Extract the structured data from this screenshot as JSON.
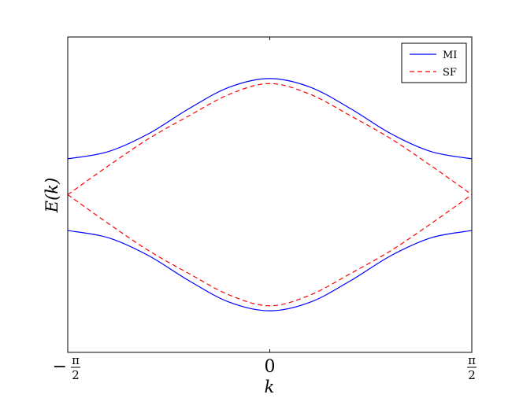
{
  "chart_data": {
    "type": "line",
    "title": "",
    "xlabel": "k",
    "ylabel": "E(k)",
    "xlim": [
      -1.5708,
      1.5708
    ],
    "ylim": [
      -2.2,
      2.2
    ],
    "xticks": [
      {
        "value": -1.5708,
        "sign": "−",
        "num": "π",
        "den": "2"
      },
      {
        "value": 0,
        "sign": "",
        "num": "0",
        "den": ""
      },
      {
        "value": 1.5708,
        "sign": "",
        "num": "π",
        "den": "2"
      }
    ],
    "yticks": [],
    "grid": false,
    "legend": {
      "position": "top-right",
      "entries": [
        "MI",
        "SF"
      ]
    },
    "series": [
      {
        "name": "MI",
        "color": "#0000ff",
        "dash": "solid",
        "x": [
          -1.5708,
          -1.2566,
          -0.9425,
          -0.6283,
          -0.3142,
          0,
          0.3142,
          0.6283,
          0.9425,
          1.2566,
          1.5708
        ],
        "y": [
          0.5,
          0.6,
          0.85,
          1.2,
          1.5,
          1.62,
          1.5,
          1.2,
          0.85,
          0.6,
          0.5
        ]
      },
      {
        "name": "MI",
        "color": "#0000ff",
        "dash": "solid",
        "x": [
          -1.5708,
          -1.2566,
          -0.9425,
          -0.6283,
          -0.3142,
          0,
          0.3142,
          0.6283,
          0.9425,
          1.2566,
          1.5708
        ],
        "y": [
          -0.5,
          -0.6,
          -0.85,
          -1.2,
          -1.5,
          -1.62,
          -1.5,
          -1.2,
          -0.85,
          -0.6,
          -0.5
        ]
      },
      {
        "name": "SF",
        "color": "#ff0000",
        "dash": "dashed",
        "x": [
          -1.5708,
          -1.2566,
          -0.9425,
          -0.6283,
          -0.3142,
          0,
          0.3142,
          0.6283,
          0.9425,
          1.2566,
          1.5708
        ],
        "y": [
          0,
          0.4,
          0.78,
          1.1,
          1.4,
          1.55,
          1.4,
          1.1,
          0.78,
          0.4,
          0
        ]
      },
      {
        "name": "SF",
        "color": "#ff0000",
        "dash": "dashed",
        "x": [
          -1.5708,
          -1.2566,
          -0.9425,
          -0.6283,
          -0.3142,
          0,
          0.3142,
          0.6283,
          0.9425,
          1.2566,
          1.5708
        ],
        "y": [
          0,
          -0.4,
          -0.78,
          -1.1,
          -1.4,
          -1.55,
          -1.4,
          -1.1,
          -0.78,
          -0.4,
          0
        ]
      }
    ]
  }
}
